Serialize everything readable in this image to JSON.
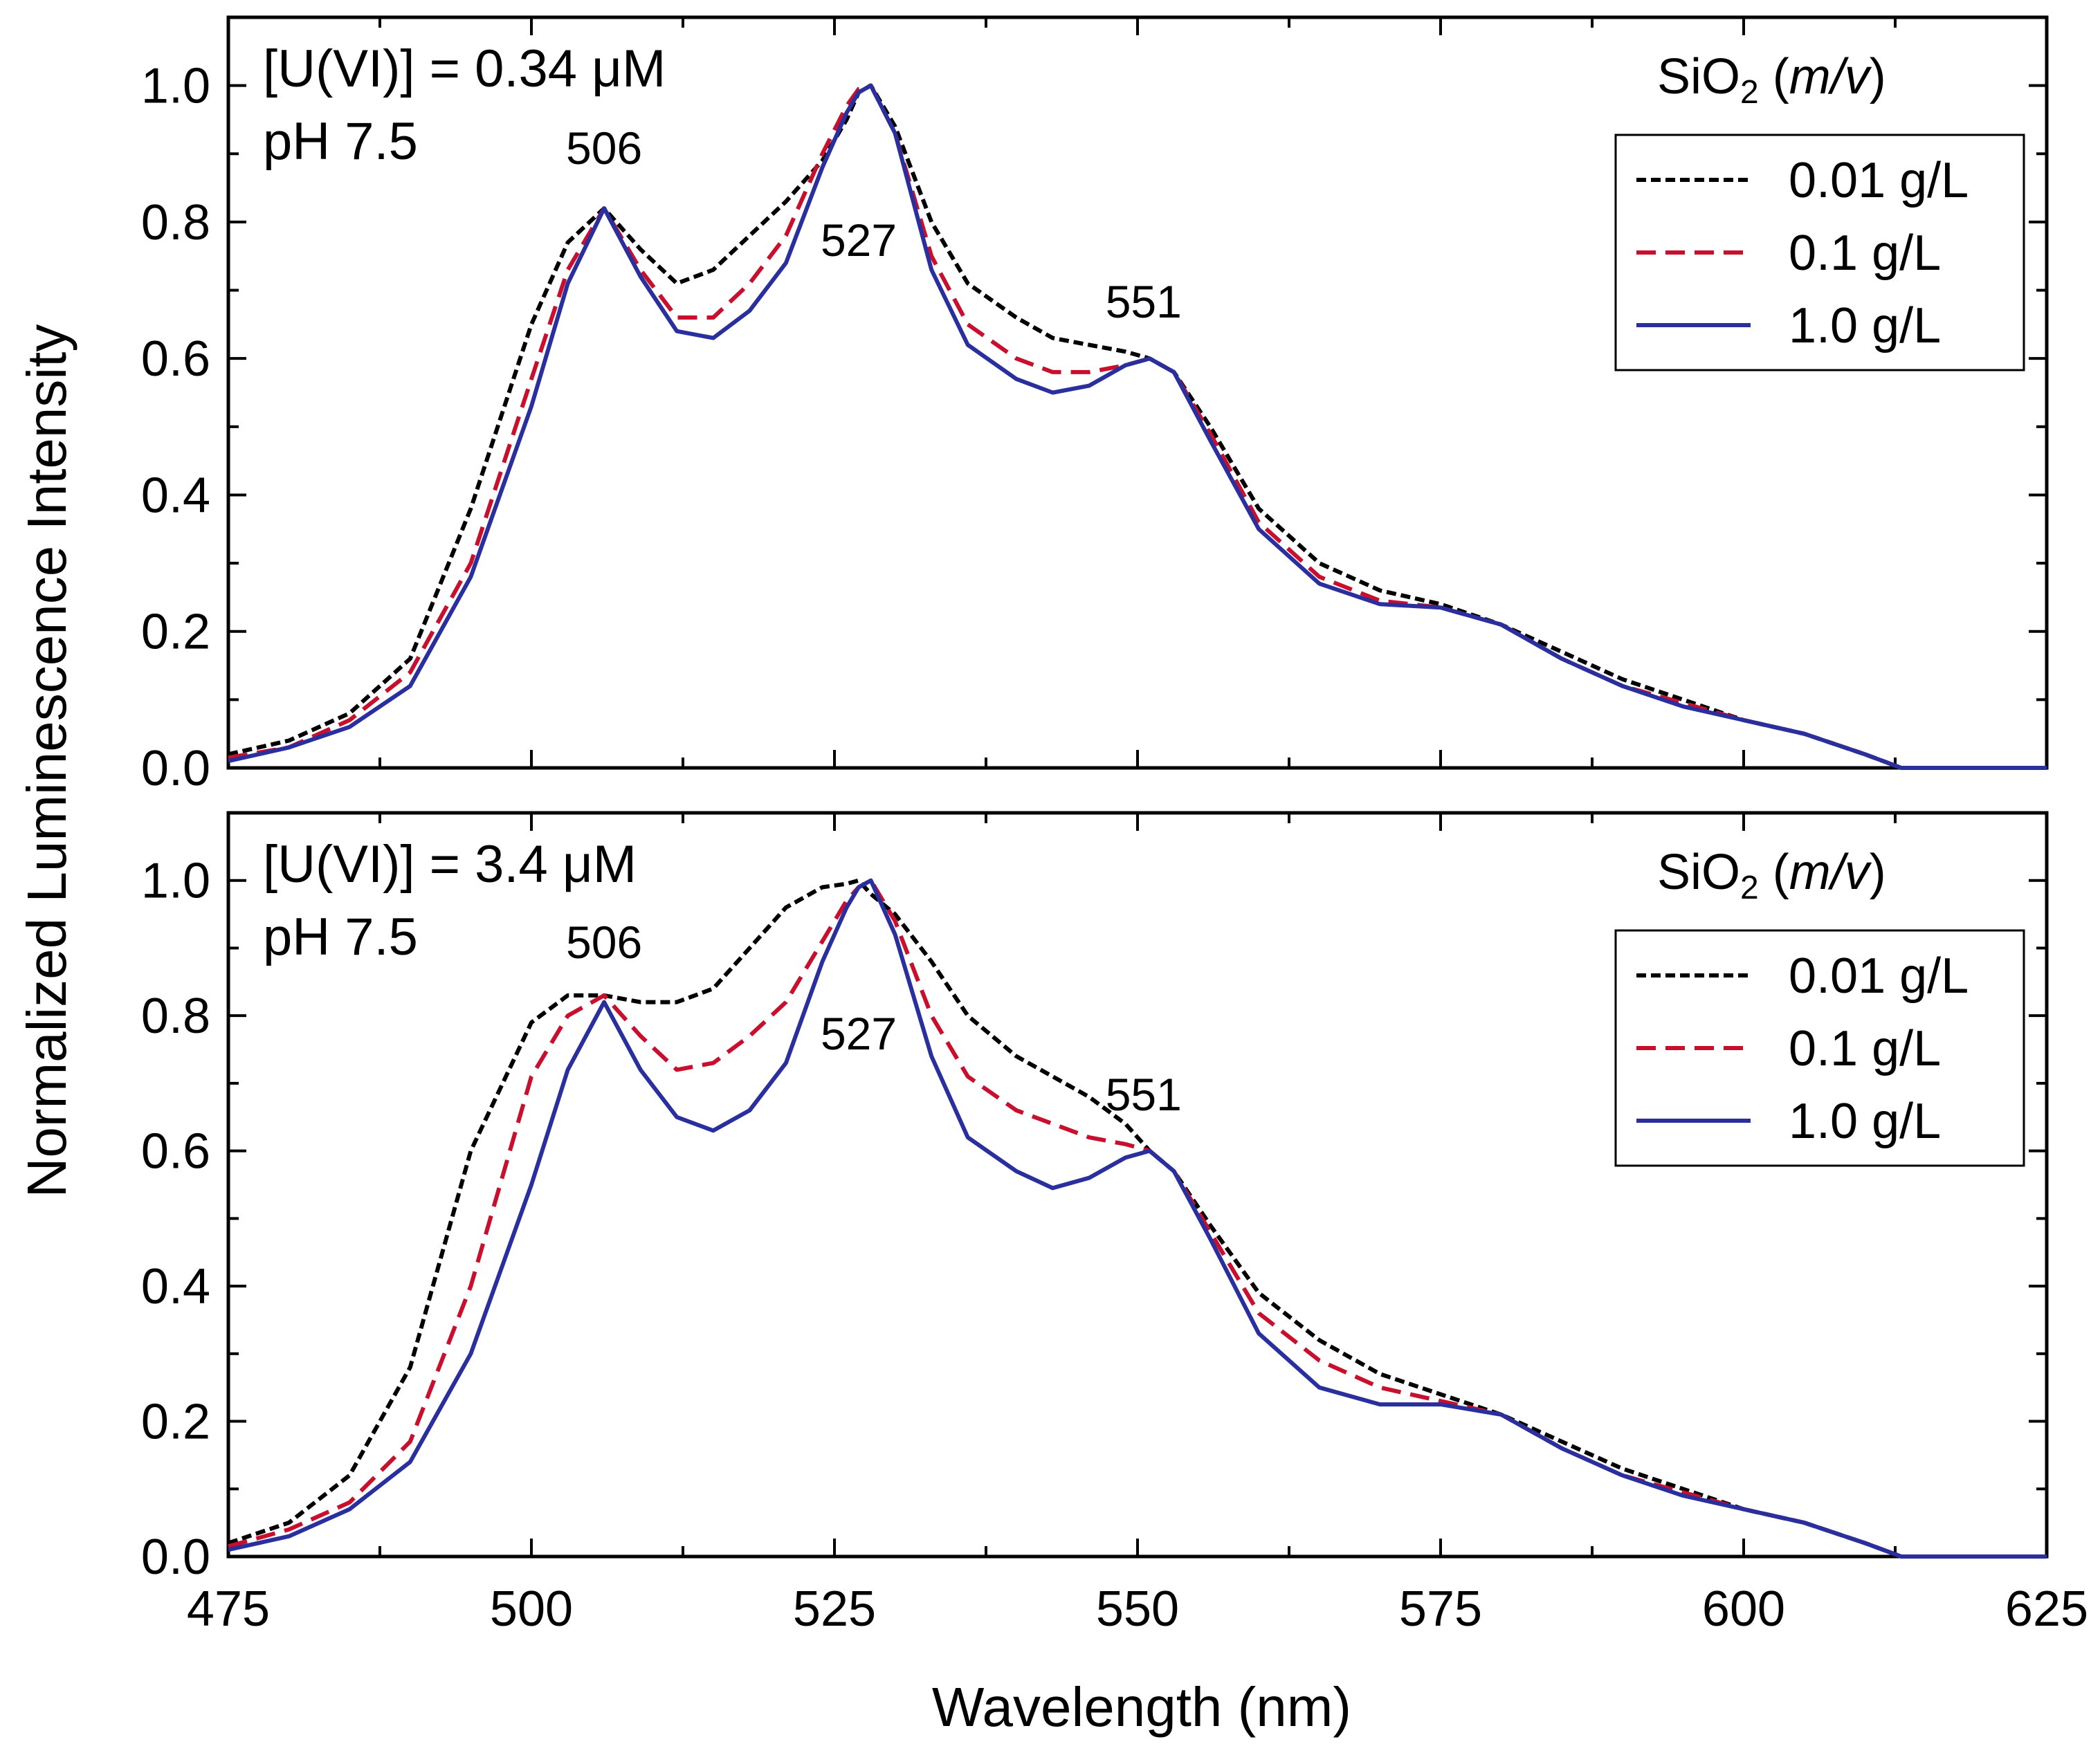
{
  "chart_data": {
    "type": "line",
    "shared": {
      "xlabel": "Wavelength (nm)",
      "ylabel": "Normalized Luminescence Intensity",
      "xlim": [
        475,
        625
      ],
      "ylim": [
        0.0,
        1.1
      ],
      "x_ticks": [
        "475",
        "500",
        "525",
        "550",
        "575",
        "600",
        "625"
      ],
      "y_ticks": [
        "0.0",
        "0.2",
        "0.4",
        "0.6",
        "0.8",
        "1.0"
      ],
      "legend_title_prefix": "SiO",
      "legend_title_sub": "2",
      "legend_title_unit": "m/v",
      "legend_position": "top-right",
      "series_styles": [
        {
          "name": "0.01 g/L",
          "color": "#000000",
          "dash": "dotted-dense"
        },
        {
          "name": "0.1 g/L",
          "color": "#c8102e",
          "dash": "dashed"
        },
        {
          "name": "1.0 g/L",
          "color": "#2a2f9e",
          "dash": "solid"
        }
      ]
    },
    "panels": [
      {
        "concentration_label": "[U(VI)] = 0.34 μM",
        "ph_label": "pH 7.5",
        "peak_labels": [
          {
            "text": "506",
            "x": 506,
            "y": 0.885
          },
          {
            "text": "527",
            "x": 527,
            "y": 0.75
          },
          {
            "text": "551",
            "x": 550.5,
            "y": 0.66
          }
        ],
        "x": [
          475,
          480,
          485,
          490,
          495,
          500,
          503,
          506,
          509,
          512,
          515,
          518,
          521,
          524,
          526,
          527,
          528,
          530,
          533,
          536,
          540,
          543,
          546,
          549,
          551,
          553,
          556,
          560,
          565,
          570,
          575,
          580,
          585,
          590,
          595,
          600,
          605,
          610,
          613,
          616,
          620,
          625
        ],
        "series": [
          {
            "name": "0.01 g/L",
            "values": [
              0.02,
              0.04,
              0.08,
              0.16,
              0.38,
              0.65,
              0.77,
              0.82,
              0.76,
              0.71,
              0.73,
              0.78,
              0.83,
              0.89,
              0.95,
              0.99,
              1.0,
              0.94,
              0.8,
              0.71,
              0.66,
              0.63,
              0.62,
              0.61,
              0.6,
              0.58,
              0.5,
              0.38,
              0.3,
              0.26,
              0.24,
              0.21,
              0.17,
              0.13,
              0.1,
              0.07,
              0.05,
              0.02,
              0.0,
              0.0,
              0.0,
              0.0
            ]
          },
          {
            "name": "0.1 g/L",
            "values": [
              0.015,
              0.03,
              0.07,
              0.14,
              0.3,
              0.57,
              0.73,
              0.82,
              0.73,
              0.66,
              0.66,
              0.71,
              0.78,
              0.9,
              0.97,
              0.995,
              1.0,
              0.93,
              0.75,
              0.65,
              0.6,
              0.58,
              0.58,
              0.59,
              0.6,
              0.58,
              0.49,
              0.36,
              0.28,
              0.245,
              0.235,
              0.21,
              0.16,
              0.12,
              0.095,
              0.07,
              0.05,
              0.02,
              0.0,
              0.0,
              0.0,
              0.0
            ]
          },
          {
            "name": "1.0 g/L",
            "values": [
              0.01,
              0.03,
              0.06,
              0.12,
              0.28,
              0.53,
              0.71,
              0.82,
              0.72,
              0.64,
              0.63,
              0.67,
              0.74,
              0.88,
              0.96,
              0.99,
              1.0,
              0.93,
              0.73,
              0.62,
              0.57,
              0.55,
              0.56,
              0.59,
              0.6,
              0.58,
              0.48,
              0.35,
              0.27,
              0.24,
              0.235,
              0.21,
              0.16,
              0.12,
              0.09,
              0.07,
              0.05,
              0.02,
              0.0,
              0.0,
              0.0,
              0.0
            ]
          }
        ]
      },
      {
        "concentration_label": "[U(VI)] = 3.4 μM",
        "ph_label": "pH 7.5",
        "peak_labels": [
          {
            "text": "506",
            "x": 506,
            "y": 0.885
          },
          {
            "text": "527",
            "x": 527,
            "y": 0.75
          },
          {
            "text": "551",
            "x": 550.5,
            "y": 0.66
          }
        ],
        "x": [
          475,
          480,
          485,
          490,
          495,
          500,
          503,
          506,
          509,
          512,
          515,
          518,
          521,
          524,
          526,
          527,
          528,
          530,
          533,
          536,
          540,
          543,
          546,
          549,
          551,
          553,
          556,
          560,
          565,
          570,
          575,
          580,
          585,
          590,
          595,
          600,
          605,
          610,
          613,
          616,
          620,
          625
        ],
        "series": [
          {
            "name": "0.01 g/L",
            "values": [
              0.02,
              0.05,
              0.12,
              0.28,
              0.6,
              0.79,
              0.83,
              0.83,
              0.82,
              0.82,
              0.84,
              0.9,
              0.96,
              0.99,
              0.995,
              1.0,
              0.98,
              0.95,
              0.88,
              0.8,
              0.74,
              0.71,
              0.68,
              0.64,
              0.6,
              0.57,
              0.49,
              0.39,
              0.32,
              0.27,
              0.24,
              0.21,
              0.17,
              0.13,
              0.1,
              0.07,
              0.05,
              0.02,
              0.0,
              0.0,
              0.0,
              0.0
            ]
          },
          {
            "name": "0.1 g/L",
            "values": [
              0.015,
              0.04,
              0.08,
              0.17,
              0.4,
              0.71,
              0.8,
              0.83,
              0.77,
              0.72,
              0.73,
              0.77,
              0.82,
              0.91,
              0.97,
              0.99,
              1.0,
              0.94,
              0.8,
              0.71,
              0.66,
              0.64,
              0.62,
              0.61,
              0.6,
              0.57,
              0.48,
              0.36,
              0.29,
              0.25,
              0.23,
              0.21,
              0.16,
              0.12,
              0.095,
              0.07,
              0.05,
              0.02,
              0.0,
              0.0,
              0.0,
              0.0
            ]
          },
          {
            "name": "1.0 g/L",
            "values": [
              0.01,
              0.03,
              0.07,
              0.14,
              0.3,
              0.55,
              0.72,
              0.82,
              0.72,
              0.65,
              0.63,
              0.66,
              0.73,
              0.88,
              0.96,
              0.99,
              1.0,
              0.92,
              0.74,
              0.62,
              0.57,
              0.545,
              0.56,
              0.59,
              0.6,
              0.57,
              0.47,
              0.33,
              0.25,
              0.225,
              0.225,
              0.21,
              0.16,
              0.12,
              0.09,
              0.07,
              0.05,
              0.02,
              0.0,
              0.0,
              0.0,
              0.0
            ]
          }
        ]
      }
    ]
  }
}
